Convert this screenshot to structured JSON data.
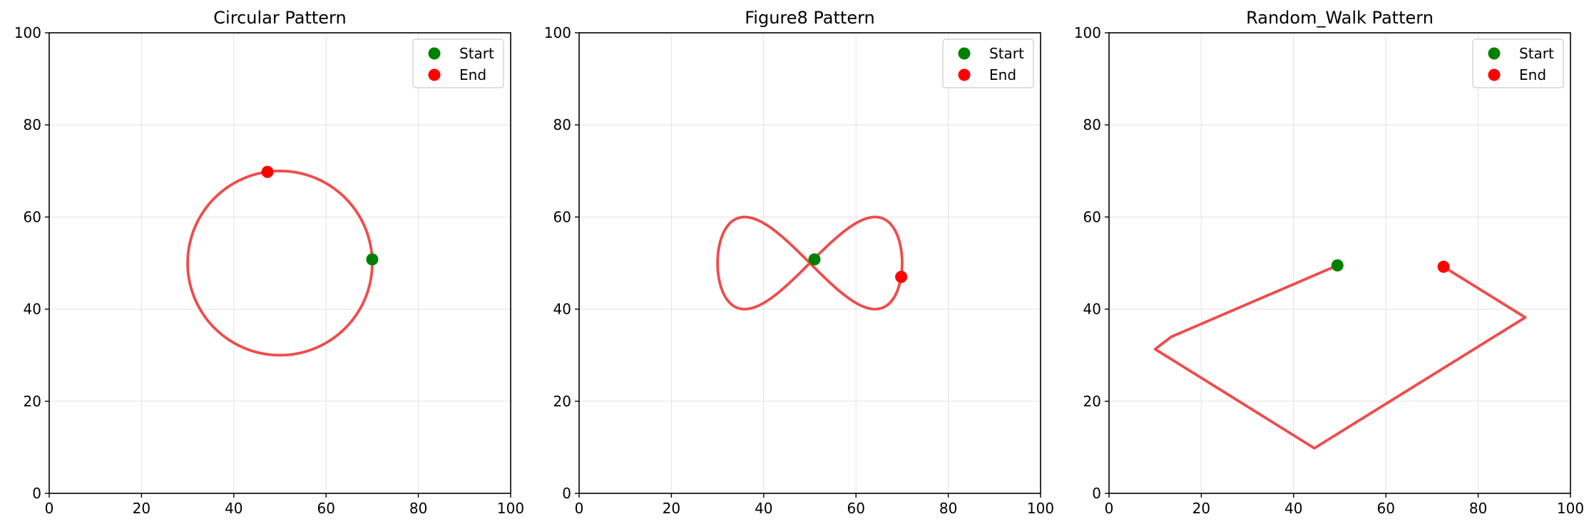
{
  "chart_data": [
    {
      "type": "line",
      "title": "Circular Pattern",
      "xlim": [
        0,
        100
      ],
      "ylim": [
        0,
        100
      ],
      "xticks": [
        0,
        20,
        40,
        60,
        80,
        100
      ],
      "yticks": [
        0,
        20,
        40,
        60,
        80,
        100
      ],
      "grid": true,
      "legend_position": "top-right",
      "shape": "circle",
      "center": [
        50,
        50
      ],
      "radius": 20,
      "points": [],
      "start": [
        70,
        50.8
      ],
      "end": [
        47.3,
        69.8
      ],
      "line_color": "#f04b4b",
      "legend": [
        {
          "label": "Start",
          "color": "#008000"
        },
        {
          "label": "End",
          "color": "#ff0000"
        }
      ]
    },
    {
      "type": "line",
      "title": "Figure8 Pattern",
      "xlim": [
        0,
        100
      ],
      "ylim": [
        0,
        100
      ],
      "xticks": [
        0,
        20,
        40,
        60,
        80,
        100
      ],
      "yticks": [
        0,
        20,
        40,
        60,
        80,
        100
      ],
      "grid": true,
      "legend_position": "top-right",
      "shape": "figure8",
      "center": [
        50,
        50
      ],
      "amplitude_x": 20,
      "amplitude_y": 10,
      "points": [],
      "start": [
        51,
        50.8
      ],
      "end": [
        69.8,
        47.0
      ],
      "line_color": "#f04b4b",
      "legend": [
        {
          "label": "Start",
          "color": "#008000"
        },
        {
          "label": "End",
          "color": "#ff0000"
        }
      ]
    },
    {
      "type": "line",
      "title": "Random_Walk Pattern",
      "xlim": [
        0,
        100
      ],
      "ylim": [
        0,
        100
      ],
      "xticks": [
        0,
        20,
        40,
        60,
        80,
        100
      ],
      "yticks": [
        0,
        20,
        40,
        60,
        80,
        100
      ],
      "grid": true,
      "legend_position": "top-right",
      "shape": "polyline",
      "points": [
        [
          49.5,
          49.5
        ],
        [
          13.5,
          34
        ],
        [
          10,
          31.3
        ],
        [
          44.5,
          9.8
        ],
        [
          90.2,
          38.2
        ],
        [
          72.5,
          49.2
        ]
      ],
      "start": [
        49.5,
        49.5
      ],
      "end": [
        72.5,
        49.2
      ],
      "line_color": "#f04b4b",
      "legend": [
        {
          "label": "Start",
          "color": "#008000"
        },
        {
          "label": "End",
          "color": "#ff0000"
        }
      ]
    }
  ]
}
